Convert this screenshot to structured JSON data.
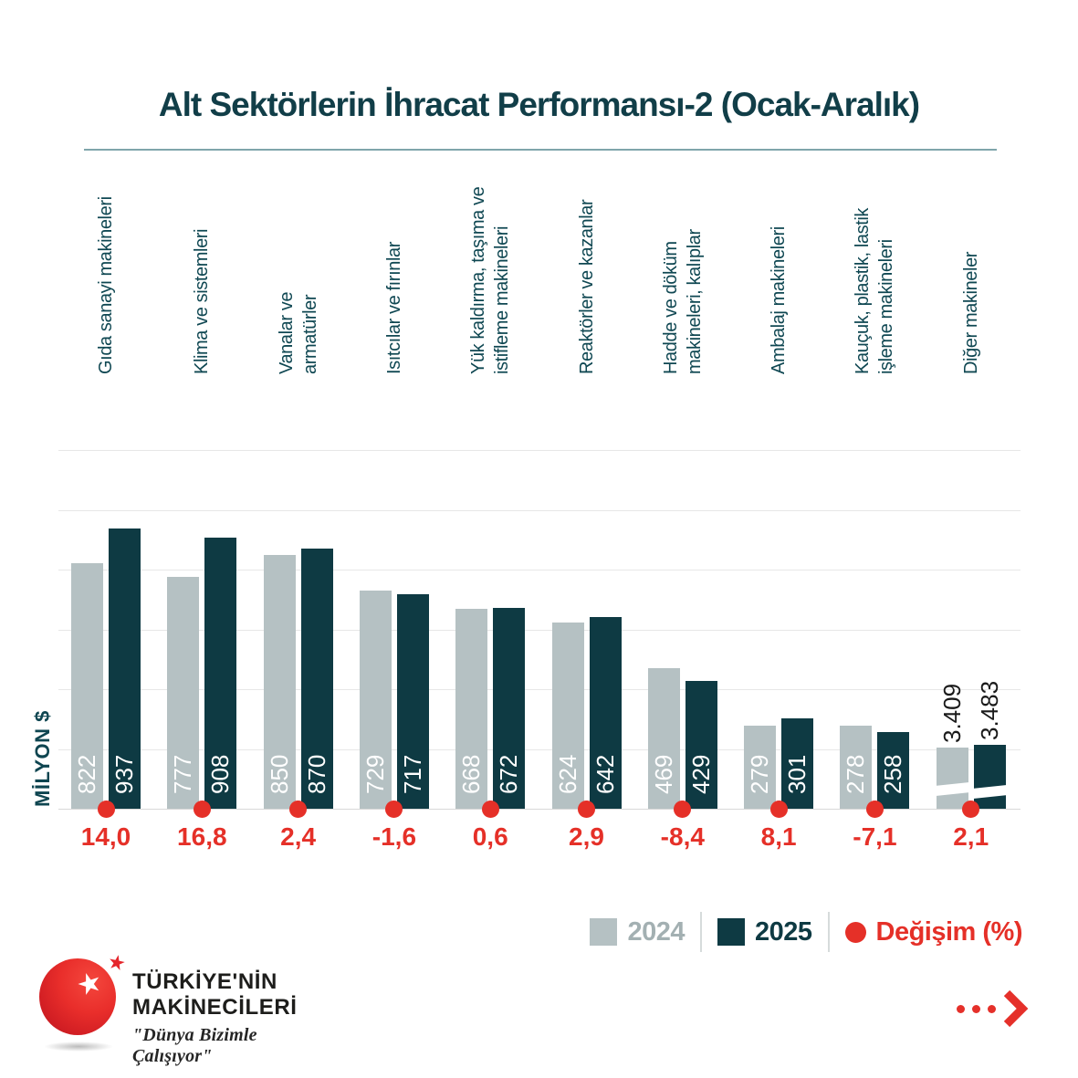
{
  "title": "Alt Sektörlerin İhracat Performansı-2 (Ocak-Aralık)",
  "chart_data": {
    "type": "bar",
    "title": "Alt Sektörlerin İhracat Performansı-2 (Ocak-Aralık)",
    "ylabel": "MİLYON $",
    "ylim": [
      0,
      1200
    ],
    "ytick_step": 200,
    "grid": true,
    "legend_position": "bottom-right",
    "categories": [
      [
        "Gıda sanayi makineleri"
      ],
      [
        "Klima ve sistemleri"
      ],
      [
        "Vanalar ve",
        "armatürler"
      ],
      [
        "Isıtcılar ve fırınlar"
      ],
      [
        "Yük kaldırma, taşıma ve",
        "istifleme makineleri"
      ],
      [
        "Reaktörler ve kazanlar"
      ],
      [
        "Hadde ve döküm",
        "makineleri, kalıplar"
      ],
      [
        "Ambalaj makineleri"
      ],
      [
        "Kauçuk, plastik, lastik",
        "işleme makineleri"
      ],
      [
        "Diğer makineler"
      ]
    ],
    "series": [
      {
        "name": "2024",
        "color": "#b5c1c3",
        "label_color": "#a3b0b2",
        "values": [
          822,
          777,
          850,
          729,
          668,
          624,
          469,
          279,
          278,
          3409
        ],
        "labels": [
          "822",
          "777",
          "850",
          "729",
          "668",
          "624",
          "469",
          "279",
          "278",
          "3.409"
        ]
      },
      {
        "name": "2025",
        "color": "#0e3a43",
        "label_color": "#0e3a43",
        "values": [
          937,
          908,
          870,
          717,
          672,
          642,
          429,
          301,
          258,
          3483
        ],
        "labels": [
          "937",
          "908",
          "870",
          "717",
          "672",
          "642",
          "429",
          "301",
          "258",
          "3.483"
        ]
      }
    ],
    "change": {
      "name": "Değişim (%)",
      "color": "#e53028",
      "values": [
        14.0,
        16.8,
        2.4,
        -1.6,
        0.6,
        2.9,
        -8.4,
        8.1,
        -7.1,
        2.1
      ],
      "labels": [
        "14,0",
        "16,8",
        "2,4",
        "-1,6",
        "0,6",
        "2,9",
        "-8,4",
        "8,1",
        "-7,1",
        "2,1"
      ]
    },
    "axis_break": {
      "group_index": 9,
      "reason": "values exceed y-axis range"
    }
  },
  "footer": {
    "logo": {
      "line1": "TÜRKİYE'NİN",
      "line2": "MAKİNECİLERİ",
      "tagline": "\"Dünya Bizimle Çalışıyor\""
    }
  },
  "icons": {
    "star_glyph": "★",
    "change_marker": "red-dot",
    "next": "dots-chevron-right"
  },
  "colors": {
    "series_2024": "#b5c1c3",
    "series_2025": "#0e3a43",
    "accent_red": "#e53028",
    "teal_text": "#0e4550",
    "grid": "#e7e7e7",
    "title_underline": "#7fa5ab"
  }
}
